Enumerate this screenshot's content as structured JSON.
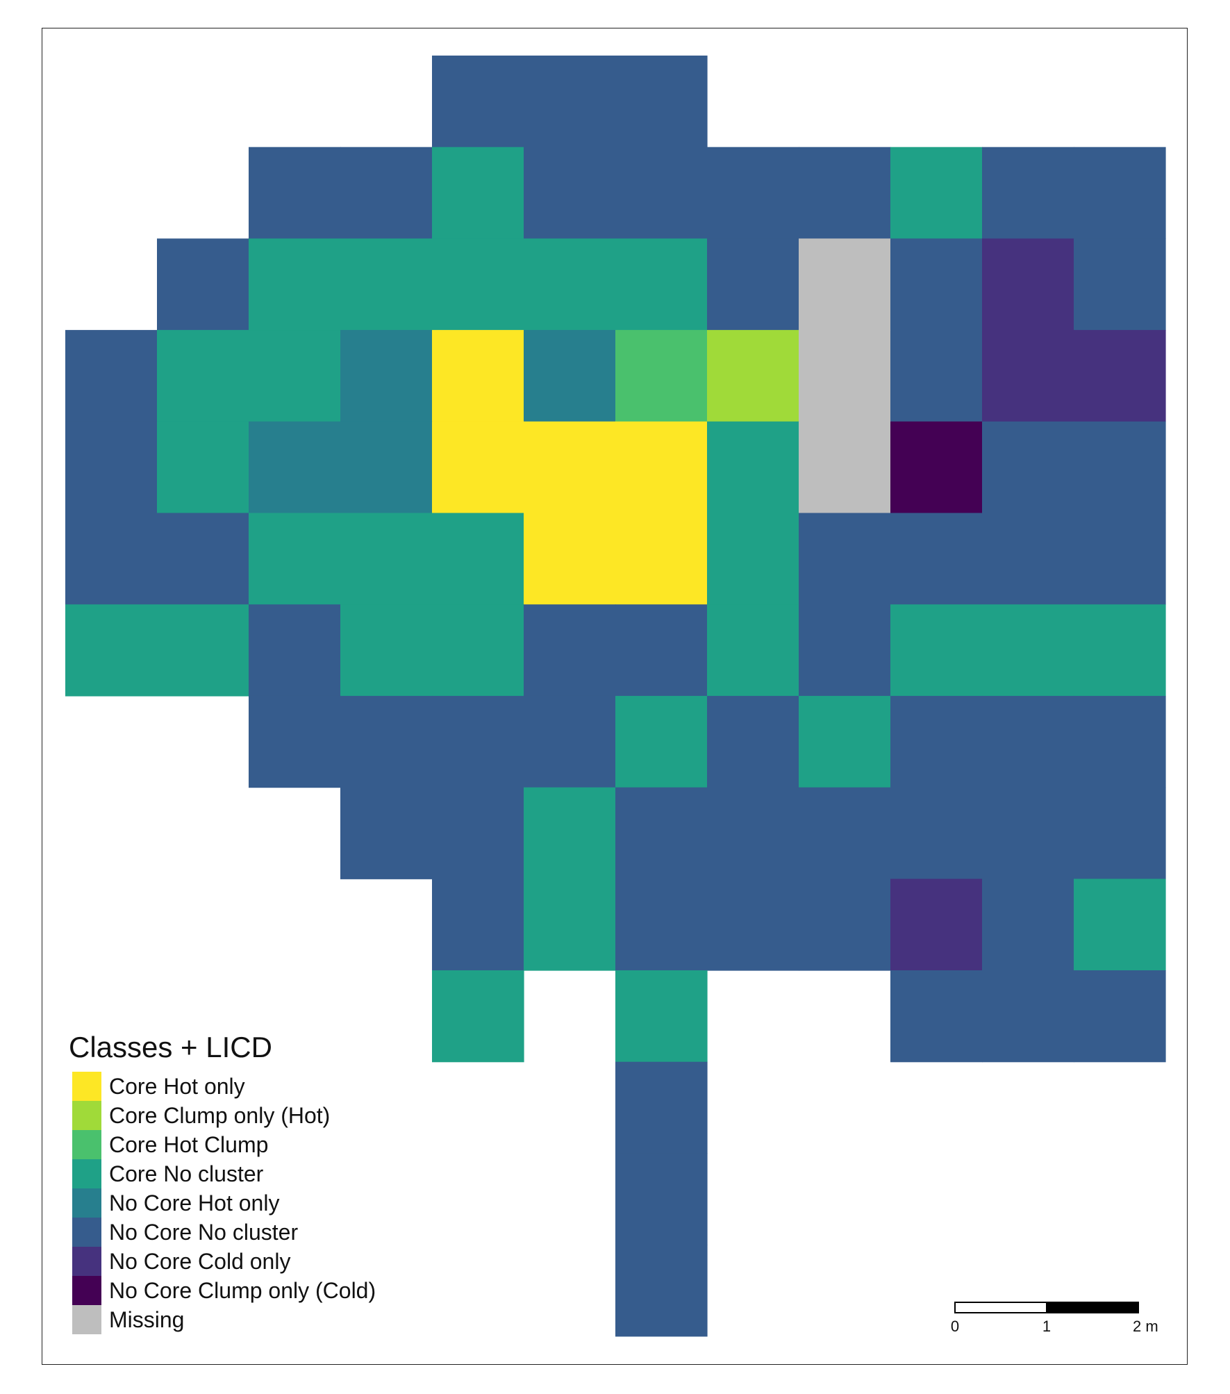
{
  "map": {
    "legend": {
      "title": "Classes + LICD",
      "items": [
        {
          "code": "A",
          "label": "Core Hot only",
          "color": "#fde725"
        },
        {
          "code": "B",
          "label": "Core Clump only (Hot)",
          "color": "#a0da39"
        },
        {
          "code": "C",
          "label": "Core Hot Clump",
          "color": "#4ac16d"
        },
        {
          "code": "D",
          "label": "Core No cluster",
          "color": "#1fa187"
        },
        {
          "code": "E",
          "label": "No Core Hot only",
          "color": "#277f8e"
        },
        {
          "code": "F",
          "label": "No Core No cluster",
          "color": "#365c8d"
        },
        {
          "code": "G",
          "label": "No Core Cold only",
          "color": "#46327e"
        },
        {
          "code": "H",
          "label": "No Core Clump only (Cold)",
          "color": "#440154"
        },
        {
          "code": "M",
          "label": "Missing",
          "color": "#bebebe"
        }
      ]
    },
    "grid_rows": [
      "....FFF.....",
      "..FFDFFFFDFF",
      ".FDDDDDFMFGF",
      "FDDEAECBMFGG",
      "FDEEAAADMHFF",
      "FFDDDAADFFFF",
      "DDFDDFFDFDDD",
      "..FFFFDFDFFF",
      "...FFDFFFFFF",
      "....FDFFFGFD",
      "....D.D..FFF",
      "......F.....",
      "......F.....",
      "......F....."
    ],
    "scale_bar": {
      "tick_labels": [
        "0",
        "1",
        "2 m"
      ],
      "unit": "m"
    }
  }
}
